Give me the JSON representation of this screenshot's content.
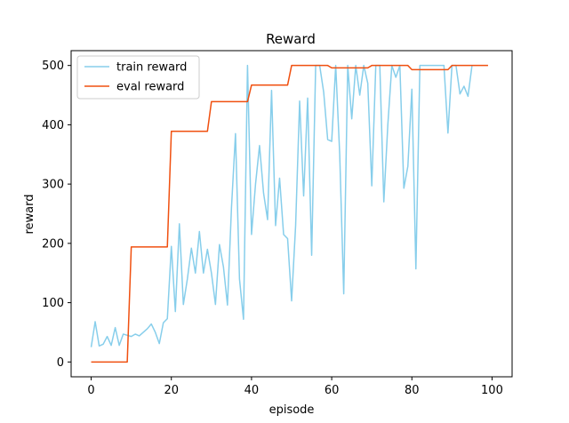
{
  "chart_data": {
    "type": "line",
    "title": "Reward",
    "xlabel": "episode",
    "ylabel": "reward",
    "xlim": [
      -5,
      105
    ],
    "ylim": [
      -25,
      525
    ],
    "xticks": [
      0,
      20,
      40,
      60,
      80,
      100
    ],
    "yticks": [
      0,
      100,
      200,
      300,
      400,
      500
    ],
    "grid": false,
    "legend_position": "top-left",
    "series": [
      {
        "name": "train reward",
        "color": "#87ceeb",
        "x": [
          0,
          1,
          2,
          3,
          4,
          5,
          6,
          7,
          8,
          9,
          10,
          11,
          12,
          13,
          14,
          15,
          16,
          17,
          18,
          19,
          20,
          21,
          22,
          23,
          24,
          25,
          26,
          27,
          28,
          29,
          30,
          31,
          32,
          33,
          34,
          35,
          36,
          37,
          38,
          39,
          40,
          41,
          42,
          43,
          44,
          45,
          46,
          47,
          48,
          49,
          50,
          51,
          52,
          53,
          54,
          55,
          56,
          57,
          58,
          59,
          60,
          61,
          62,
          63,
          64,
          65,
          66,
          67,
          68,
          69,
          70,
          71,
          72,
          73,
          74,
          75,
          76,
          77,
          78,
          79,
          80,
          81,
          82,
          83,
          84,
          85,
          86,
          87,
          88,
          89,
          90,
          91,
          92,
          93,
          94,
          95
        ],
        "y": [
          25,
          68,
          27,
          30,
          43,
          28,
          58,
          28,
          47,
          45,
          43,
          47,
          44,
          50,
          56,
          64,
          50,
          31,
          66,
          73,
          195,
          85,
          233,
          97,
          140,
          192,
          150,
          220,
          150,
          190,
          150,
          97,
          198,
          160,
          96,
          260,
          385,
          140,
          72,
          500,
          215,
          300,
          365,
          285,
          240,
          458,
          230,
          310,
          215,
          208,
          103,
          230,
          440,
          280,
          445,
          180,
          500,
          500,
          455,
          375,
          372,
          500,
          350,
          115,
          500,
          410,
          500,
          450,
          500,
          470,
          297,
          500,
          500,
          270,
          400,
          500,
          480,
          500,
          293,
          330,
          460,
          157,
          500,
          500,
          500,
          500,
          500,
          500,
          500,
          386,
          500,
          500,
          452,
          465,
          448,
          500
        ]
      },
      {
        "name": "eval reward",
        "color": "#f05010",
        "x": [
          0,
          9,
          10,
          19,
          20,
          29,
          30,
          39,
          40,
          49,
          50,
          59,
          60,
          69,
          70,
          79,
          80,
          89,
          90,
          99
        ],
        "y": [
          0,
          0,
          194,
          194,
          389,
          389,
          439,
          439,
          467,
          467,
          500,
          500,
          496,
          496,
          500,
          500,
          493,
          493,
          500,
          500
        ]
      }
    ]
  }
}
